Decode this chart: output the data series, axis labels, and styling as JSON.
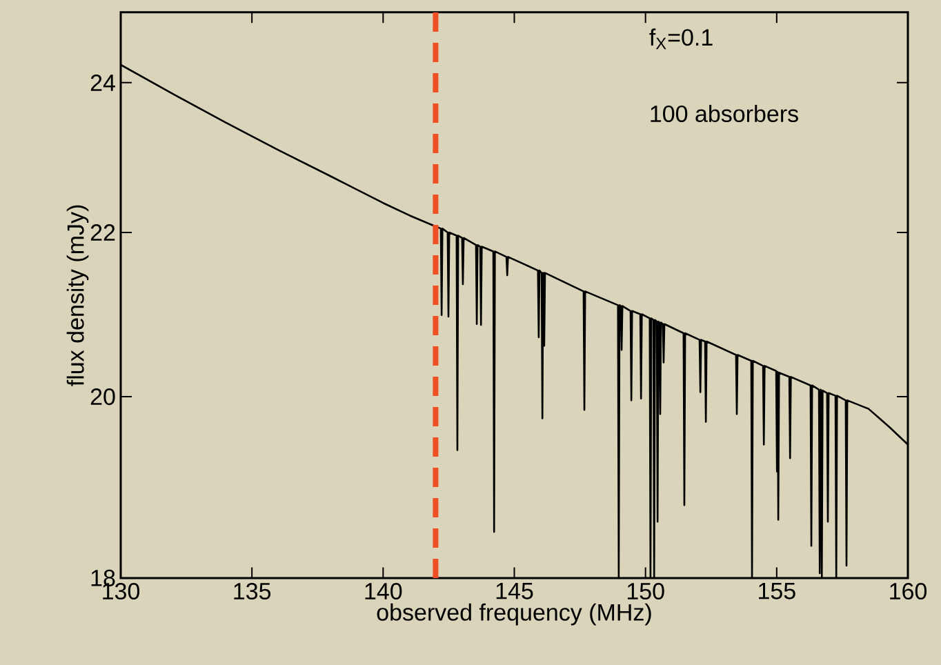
{
  "chart_data": {
    "type": "line",
    "xlabel": "observed frequency (MHz)",
    "ylabel": "flux density (mJy)",
    "log": "y",
    "xlim": [
      130,
      160
    ],
    "ylim": [
      18,
      25
    ],
    "xticks": [
      130,
      135,
      140,
      145,
      150,
      155,
      160
    ],
    "yticks": [
      18,
      20,
      22,
      24
    ],
    "marker": "none",
    "line_style": "solid",
    "annotations": [
      "f$_{X}$=0.1",
      "100 absorbers"
    ],
    "ref_lines": [
      {
        "axis": "x",
        "value": 142,
        "color": "#f04e23",
        "line_style": "dashed"
      }
    ],
    "series": [
      {
        "color": "#000000",
        "x": [
          130,
          132,
          134,
          136,
          138,
          140,
          141,
          141.98,
          142.02,
          142.06,
          142.2,
          142.23,
          142.26,
          142.46,
          142.49,
          142.52,
          142.8,
          142.83,
          142.86,
          143.01,
          143.04,
          143.07,
          143.54,
          143.57,
          143.6,
          143.7,
          143.73,
          143.76,
          144.2,
          144.23,
          144.26,
          144.7,
          144.73,
          144.76,
          145.9,
          145.93,
          145.96,
          146.04,
          146.07,
          146.1,
          146.11,
          146.14,
          146.17,
          147.64,
          147.67,
          147.7,
          148.95,
          148.98,
          149.01,
          149.06,
          149.09,
          149.12,
          149.43,
          149.46,
          149.49,
          149.8,
          149.83,
          149.86,
          150.16,
          150.19,
          150.22,
          150.3,
          150.33,
          150.36,
          150.43,
          150.46,
          150.49,
          150.53,
          150.56,
          150.59,
          150.66,
          150.69,
          150.72,
          151.45,
          151.48,
          151.51,
          152.06,
          152.09,
          152.12,
          152.27,
          152.3,
          152.33,
          153.45,
          153.48,
          153.51,
          154.03,
          154.06,
          154.09,
          154.48,
          154.51,
          154.54,
          154.98,
          155.01,
          155.035,
          155.06,
          155.09,
          155.48,
          155.51,
          155.54,
          156.29,
          156.32,
          156.35,
          156.61,
          156.64,
          156.68,
          156.72,
          156.75,
          156.92,
          156.95,
          156.98,
          157.24,
          157.27,
          157.3,
          157.63,
          157.66,
          157.69,
          158.5,
          159.3,
          160
        ],
        "values": [
          24.25,
          23.84,
          23.45,
          23.08,
          22.73,
          22.38,
          22.22,
          22.08,
          null,
          22.07,
          22.05,
          20.97,
          22.05,
          22.0,
          20.95,
          22.0,
          21.96,
          19.39,
          21.96,
          21.93,
          21.35,
          21.93,
          21.84,
          20.86,
          21.84,
          21.82,
          20.85,
          21.82,
          21.76,
          18.49,
          21.76,
          21.69,
          21.46,
          21.69,
          21.52,
          20.7,
          21.52,
          21.49,
          19.75,
          21.49,
          21.49,
          20.6,
          21.49,
          21.26,
          19.85,
          21.26,
          21.09,
          18.0,
          21.09,
          21.08,
          20.55,
          21.08,
          21.02,
          19.96,
          21.02,
          20.98,
          19.98,
          20.98,
          20.93,
          18.0,
          20.93,
          20.91,
          18.0,
          20.91,
          20.89,
          18.6,
          20.89,
          20.88,
          19.8,
          20.88,
          20.86,
          20.4,
          20.86,
          20.75,
          18.78,
          20.75,
          20.67,
          20.05,
          20.67,
          20.65,
          19.71,
          20.65,
          20.49,
          19.8,
          20.49,
          20.42,
          18.0,
          20.42,
          20.36,
          19.45,
          20.36,
          20.3,
          19.15,
          20.29,
          18.62,
          20.28,
          20.23,
          19.3,
          20.23,
          20.13,
          18.34,
          20.13,
          20.08,
          18.05,
          20.08,
          18.0,
          20.07,
          20.04,
          18.6,
          20.04,
          20.01,
          18.0,
          20.01,
          19.96,
          18.13,
          19.96,
          19.86,
          19.65,
          19.45
        ]
      }
    ]
  }
}
